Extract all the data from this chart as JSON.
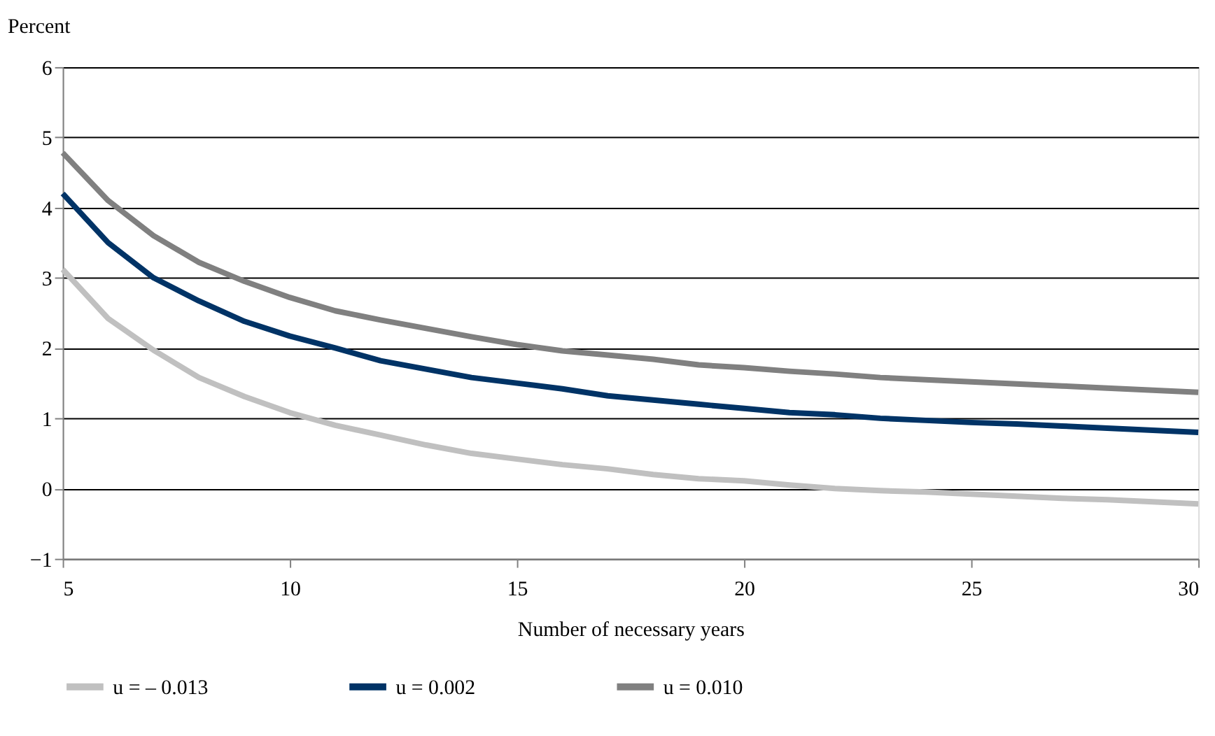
{
  "chart_data": {
    "type": "line",
    "xlabel": "Number of necessary years",
    "ylabel": "Percent",
    "x": [
      5,
      6,
      7,
      8,
      9,
      10,
      11,
      12,
      13,
      14,
      15,
      16,
      17,
      18,
      19,
      20,
      21,
      22,
      23,
      24,
      25,
      26,
      27,
      28,
      29,
      30
    ],
    "series": [
      {
        "name": "u = – 0.013",
        "color": "#c0c0c0",
        "values": [
          3.12,
          2.42,
          1.97,
          1.58,
          1.31,
          1.08,
          0.9,
          0.76,
          0.62,
          0.5,
          0.42,
          0.34,
          0.28,
          0.2,
          0.14,
          0.11,
          0.05,
          0.0,
          -0.03,
          -0.05,
          -0.08,
          -0.11,
          -0.14,
          -0.16,
          -0.19,
          -0.22
        ]
      },
      {
        "name": "u = 0.002",
        "color": "#003366",
        "values": [
          4.2,
          3.5,
          3.0,
          2.67,
          2.38,
          2.17,
          2.0,
          1.82,
          1.7,
          1.58,
          1.5,
          1.42,
          1.32,
          1.26,
          1.2,
          1.14,
          1.08,
          1.05,
          1.0,
          0.97,
          0.94,
          0.92,
          0.89,
          0.86,
          0.83,
          0.8
        ]
      },
      {
        "name": "u = 0.010",
        "color": "#808080",
        "values": [
          4.78,
          4.1,
          3.6,
          3.22,
          2.95,
          2.72,
          2.53,
          2.4,
          2.28,
          2.16,
          2.05,
          1.96,
          1.9,
          1.84,
          1.76,
          1.72,
          1.67,
          1.63,
          1.58,
          1.55,
          1.52,
          1.49,
          1.46,
          1.43,
          1.4,
          1.37
        ]
      }
    ],
    "xlim": [
      5,
      30
    ],
    "xticks": [
      5,
      10,
      15,
      20,
      25,
      30
    ],
    "ylim": [
      -1,
      6
    ],
    "yticks": [
      -1,
      0,
      1,
      2,
      3,
      4,
      5,
      6
    ],
    "grid": "y",
    "legend": "bottom",
    "marker": "none",
    "line_style": "solid"
  }
}
